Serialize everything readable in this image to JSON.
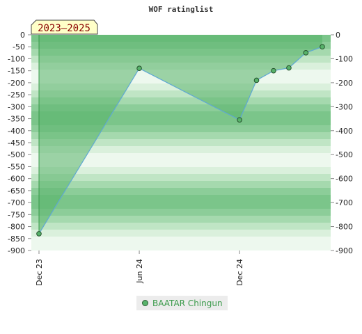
{
  "chart_data": {
    "type": "area",
    "title": "WOF ratinglist",
    "badge": "2023–2025",
    "xlabel": "",
    "ylabel": "",
    "x_ticks": [
      {
        "label": "Dec 23",
        "date": "2023-12-01"
      },
      {
        "label": "Jun 24",
        "date": "2024-06-01"
      },
      {
        "label": "Dec 24",
        "date": "2024-12-01"
      }
    ],
    "x_range": [
      "2023-12-01",
      "2025-05-15"
    ],
    "ylim": [
      -900,
      0
    ],
    "y_ticks": [
      0,
      -50,
      -100,
      -150,
      -200,
      -250,
      -300,
      -350,
      -400,
      -450,
      -500,
      -550,
      -600,
      -650,
      -700,
      -750,
      -800,
      -850,
      -900
    ],
    "y_ticks_right": [
      0,
      -100,
      -200,
      -300,
      -400,
      -500,
      -600,
      -700,
      -800,
      -900
    ],
    "series": [
      {
        "name": "BAATAR Chingun",
        "color": "#57b26a",
        "line_color": "#5fa8d3",
        "points": [
          {
            "date": "2023-12-01",
            "value": -830
          },
          {
            "date": "2024-06-01",
            "value": -140
          },
          {
            "date": "2024-12-01",
            "value": -355
          },
          {
            "date": "2025-01-01",
            "value": -190
          },
          {
            "date": "2025-02-01",
            "value": -150
          },
          {
            "date": "2025-03-01",
            "value": -138
          },
          {
            "date": "2025-04-01",
            "value": -75
          },
          {
            "date": "2025-05-01",
            "value": -50
          }
        ]
      }
    ],
    "grid": true,
    "legend_position": "bottom"
  }
}
